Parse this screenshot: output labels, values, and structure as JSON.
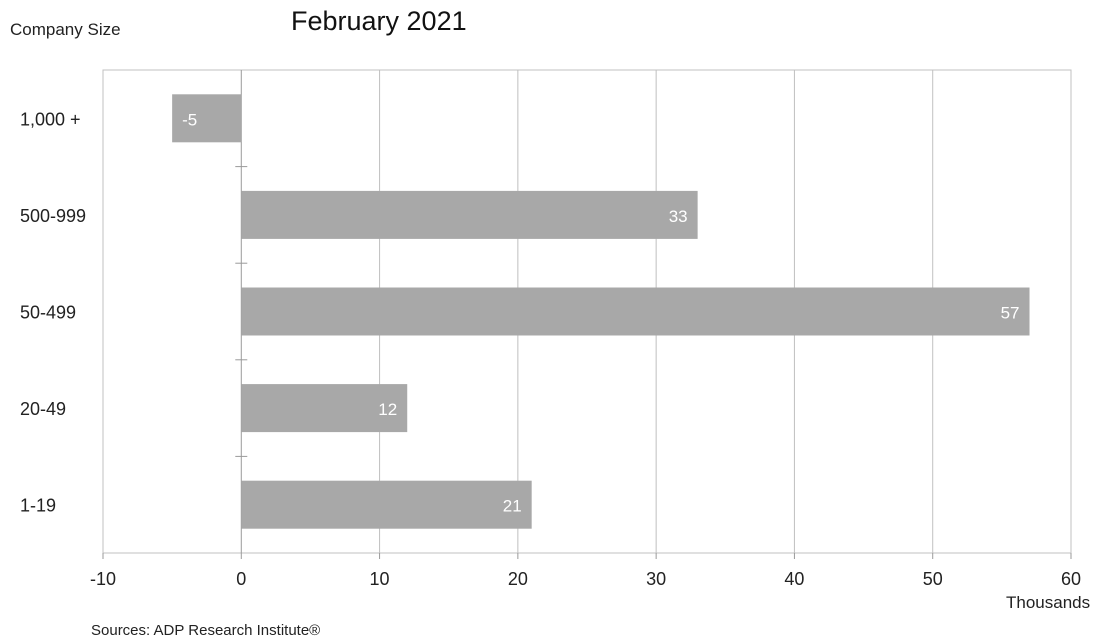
{
  "chart_data": {
    "type": "bar",
    "orientation": "horizontal",
    "title": "February 2021",
    "ylabel": "Company Size",
    "xlabel": "Thousands",
    "categories": [
      "1,000 +",
      "500-999",
      "50-499",
      "20-49",
      "1-19"
    ],
    "values": [
      -5,
      33,
      57,
      12,
      21
    ],
    "data_labels": [
      "-5",
      "33",
      "57",
      "12",
      "21"
    ],
    "x_ticks": [
      -10,
      0,
      10,
      20,
      30,
      40,
      50,
      60
    ],
    "xlim": [
      -10,
      60
    ],
    "grid": "vertical",
    "legend": "none",
    "source": "Sources: ADP Research Institute®"
  },
  "colors": {
    "bar": "#a8a8a8",
    "bar_label": "#ffffff",
    "grid": "#c0c0c0",
    "axis": "#9a9a9a"
  }
}
